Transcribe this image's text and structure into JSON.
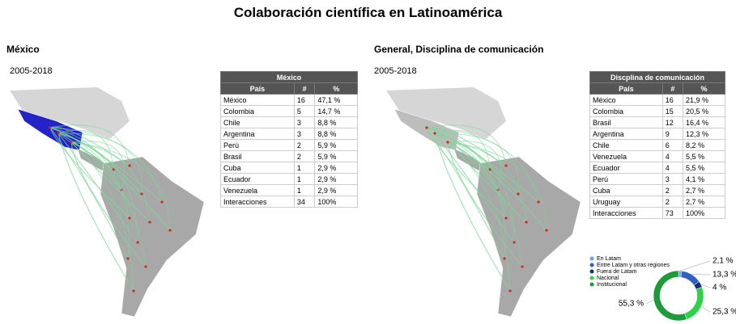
{
  "title": "Colaboración científica en Latinoamérica",
  "panels": [
    {
      "title": "México",
      "period": "2005-2018",
      "table": {
        "title": "México",
        "columns": [
          "País",
          "#",
          "%"
        ],
        "rows": [
          [
            "México",
            "16",
            "47,1 %"
          ],
          [
            "Colombia",
            "5",
            "14,7 %"
          ],
          [
            "Chile",
            "3",
            "8,8 %"
          ],
          [
            "Argentina",
            "3",
            "8,8 %"
          ],
          [
            "Perú",
            "2",
            "5,9 %"
          ],
          [
            "Brasil",
            "2",
            "5,9 %"
          ],
          [
            "Cuba",
            "1",
            "2,9 %"
          ],
          [
            "Ecuador",
            "1",
            "2,9 %"
          ],
          [
            "Venezuela",
            "1",
            "2,9 %"
          ],
          [
            "Interacciones",
            "34",
            "100%"
          ]
        ]
      }
    },
    {
      "title": "General, Disciplina de comunicación",
      "period": "2005-2018",
      "table": {
        "title": "Discplina de comunicación",
        "columns": [
          "País",
          "#",
          "%"
        ],
        "rows": [
          [
            "México",
            "16",
            "21,9 %"
          ],
          [
            "Colombia",
            "15",
            "20,5 %"
          ],
          [
            "Brasil",
            "12",
            "16,4 %"
          ],
          [
            "Argentina",
            "9",
            "12,3 %"
          ],
          [
            "Chile",
            "6",
            "8,2 %"
          ],
          [
            "Venezuela",
            "4",
            "5,5 %"
          ],
          [
            "Ecuador",
            "4",
            "5,5 %"
          ],
          [
            "Perú",
            "3",
            "4,1 %"
          ],
          [
            "Cuba",
            "2",
            "2,7 %"
          ],
          [
            "Uruguay",
            "2",
            "2,7 %"
          ],
          [
            "Interacciones",
            "73",
            "100%"
          ]
        ]
      }
    }
  ],
  "chart_data": {
    "type": "donut",
    "categories": [
      "En Latam",
      "Entre Latam y otras regiones",
      "Fuera de Latam",
      "Nacional",
      "Institucional"
    ],
    "values": [
      2.1,
      13.3,
      4,
      25.3,
      55.3
    ],
    "value_labels": [
      "2,1 %",
      "13,3 %",
      "4 %",
      "25,3 %",
      "55,3 %"
    ],
    "colors": [
      "#6fa3dc",
      "#2f5fc4",
      "#1b2f6e",
      "#2fd14a",
      "#1f9a3a"
    ]
  }
}
